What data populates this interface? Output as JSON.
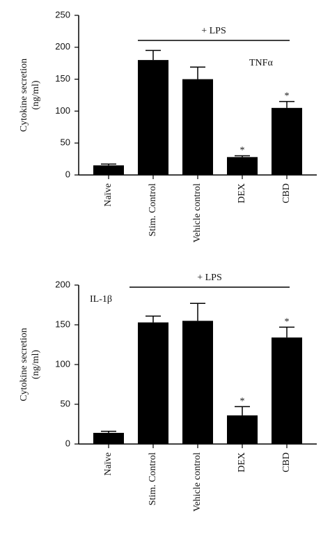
{
  "chart_data": [
    {
      "type": "bar",
      "label": "TNFα",
      "label_position": "top-right",
      "ylabel": [
        "Cytokine secretion",
        "(ng/ml)"
      ],
      "categories": [
        "Naïve",
        "Stim. Control",
        "Vehicle control",
        "DEX",
        "CBD"
      ],
      "values": [
        15,
        180,
        150,
        28,
        105
      ],
      "errors": [
        2,
        15,
        19,
        2,
        10
      ],
      "markers": [
        null,
        null,
        null,
        "*",
        "*"
      ],
      "bracket": "+ LPS",
      "color": "#000000",
      "ylim": [
        0,
        250
      ],
      "yticks": [
        0,
        50,
        100,
        150,
        200,
        250
      ]
    },
    {
      "type": "bar",
      "label": "IL-1β",
      "label_position": "top-left",
      "ylabel": [
        "Cytokine secretion",
        "(ng/ml)"
      ],
      "categories": [
        "Naïve",
        "Stim. Control",
        "Vehicle control",
        "DEX",
        "CBD"
      ],
      "values": [
        14,
        153,
        155,
        36,
        134
      ],
      "errors": [
        2,
        8,
        22,
        11,
        13
      ],
      "markers": [
        null,
        null,
        null,
        "*",
        "*"
      ],
      "bracket": "+ LPS",
      "color": "#000000",
      "ylim": [
        0,
        200
      ],
      "yticks": [
        0,
        50,
        100,
        150,
        200
      ]
    }
  ]
}
